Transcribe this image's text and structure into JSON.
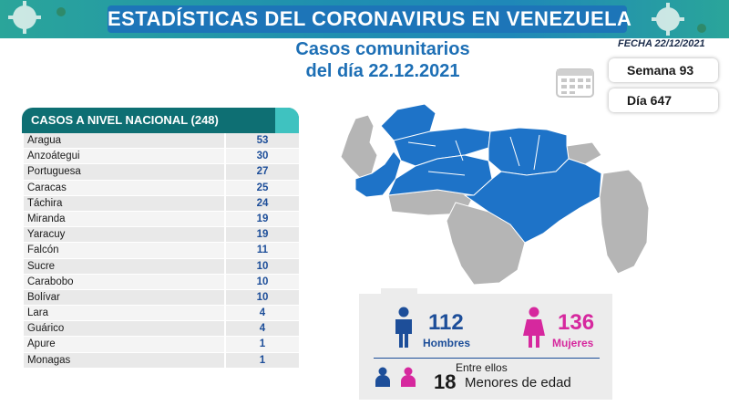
{
  "header": {
    "title": "ESTADÍSTICAS DEL CORONAVIRUS EN VENEZUELA",
    "subtitle_line1": "Casos comunitarios",
    "subtitle_line2": "del día 22.12.2021",
    "fecha": "FECHA 22/12/2021"
  },
  "week": {
    "semana": "Semana 93",
    "dia": "Día 647"
  },
  "table": {
    "heading": "CASOS A NIVEL NACIONAL  (248)",
    "rows": [
      {
        "state": "Aragua",
        "cases": "53"
      },
      {
        "state": "Anzoátegui",
        "cases": "30"
      },
      {
        "state": "Portuguesa",
        "cases": "27"
      },
      {
        "state": "Caracas",
        "cases": "25"
      },
      {
        "state": "Táchira",
        "cases": "24"
      },
      {
        "state": "Miranda",
        "cases": "19"
      },
      {
        "state": "Yaracuy",
        "cases": "19"
      },
      {
        "state": "Falcón",
        "cases": "11"
      },
      {
        "state": "Sucre",
        "cases": "10"
      },
      {
        "state": "Carabobo",
        "cases": "10"
      },
      {
        "state": "Bolívar",
        "cases": "10"
      },
      {
        "state": "Lara",
        "cases": "4"
      },
      {
        "state": "Guárico",
        "cases": "4"
      },
      {
        "state": "Apure",
        "cases": "1"
      },
      {
        "state": "Monagas",
        "cases": "1"
      }
    ]
  },
  "gender": {
    "men_count": "112",
    "men_label": "Hombres",
    "women_count": "136",
    "women_label": "Mujeres",
    "entre": "Entre ellos",
    "minors_count": "18",
    "minors_label": "Menores de edad"
  },
  "colors": {
    "title_blue": "#1d75b8",
    "map_blue": "#1e73c8",
    "map_gray": "#b5b5b5",
    "men_blue": "#1d4e99",
    "women_pink": "#d6289e",
    "table_head": "#0e6f73"
  }
}
